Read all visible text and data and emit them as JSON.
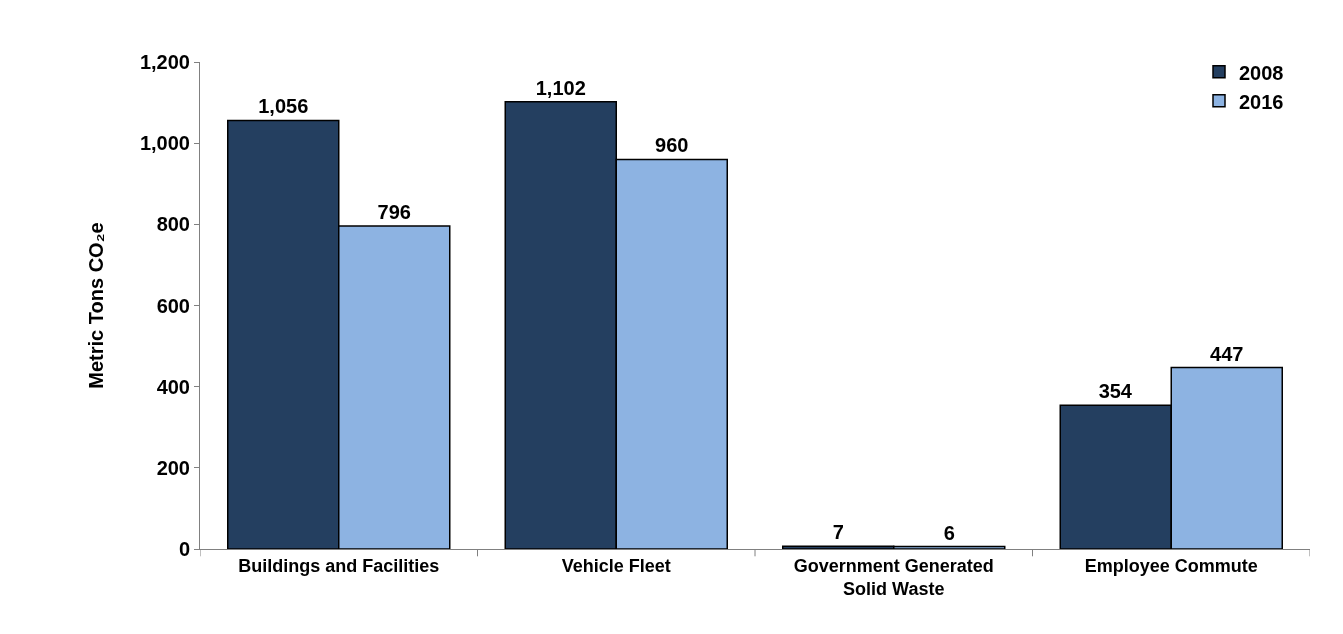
{
  "chart_data": {
    "type": "bar",
    "ylabel": "Metric Tons CO₂e",
    "categories": [
      "Buildings and Facilities",
      "Vehicle Fleet",
      "Government Generated\nSolid Waste",
      "Employee Commute"
    ],
    "series": [
      {
        "name": "2008",
        "color": "#243f60",
        "values": [
          1056,
          1102,
          7,
          354
        ],
        "value_labels": [
          "1,056",
          "1,102",
          "7",
          "354"
        ]
      },
      {
        "name": "2016",
        "color": "#8db3e2",
        "values": [
          796,
          960,
          6,
          447
        ],
        "value_labels": [
          "796",
          "960",
          "6",
          "447"
        ]
      }
    ],
    "ylim": [
      0,
      1200
    ],
    "yticks": [
      {
        "value": 0,
        "label": "0"
      },
      {
        "value": 200,
        "label": "200"
      },
      {
        "value": 400,
        "label": "400"
      },
      {
        "value": 600,
        "label": "600"
      },
      {
        "value": 800,
        "label": "800"
      },
      {
        "value": 1000,
        "label": "1,000"
      },
      {
        "value": 1200,
        "label": "1,200"
      }
    ],
    "legend": "top right"
  }
}
